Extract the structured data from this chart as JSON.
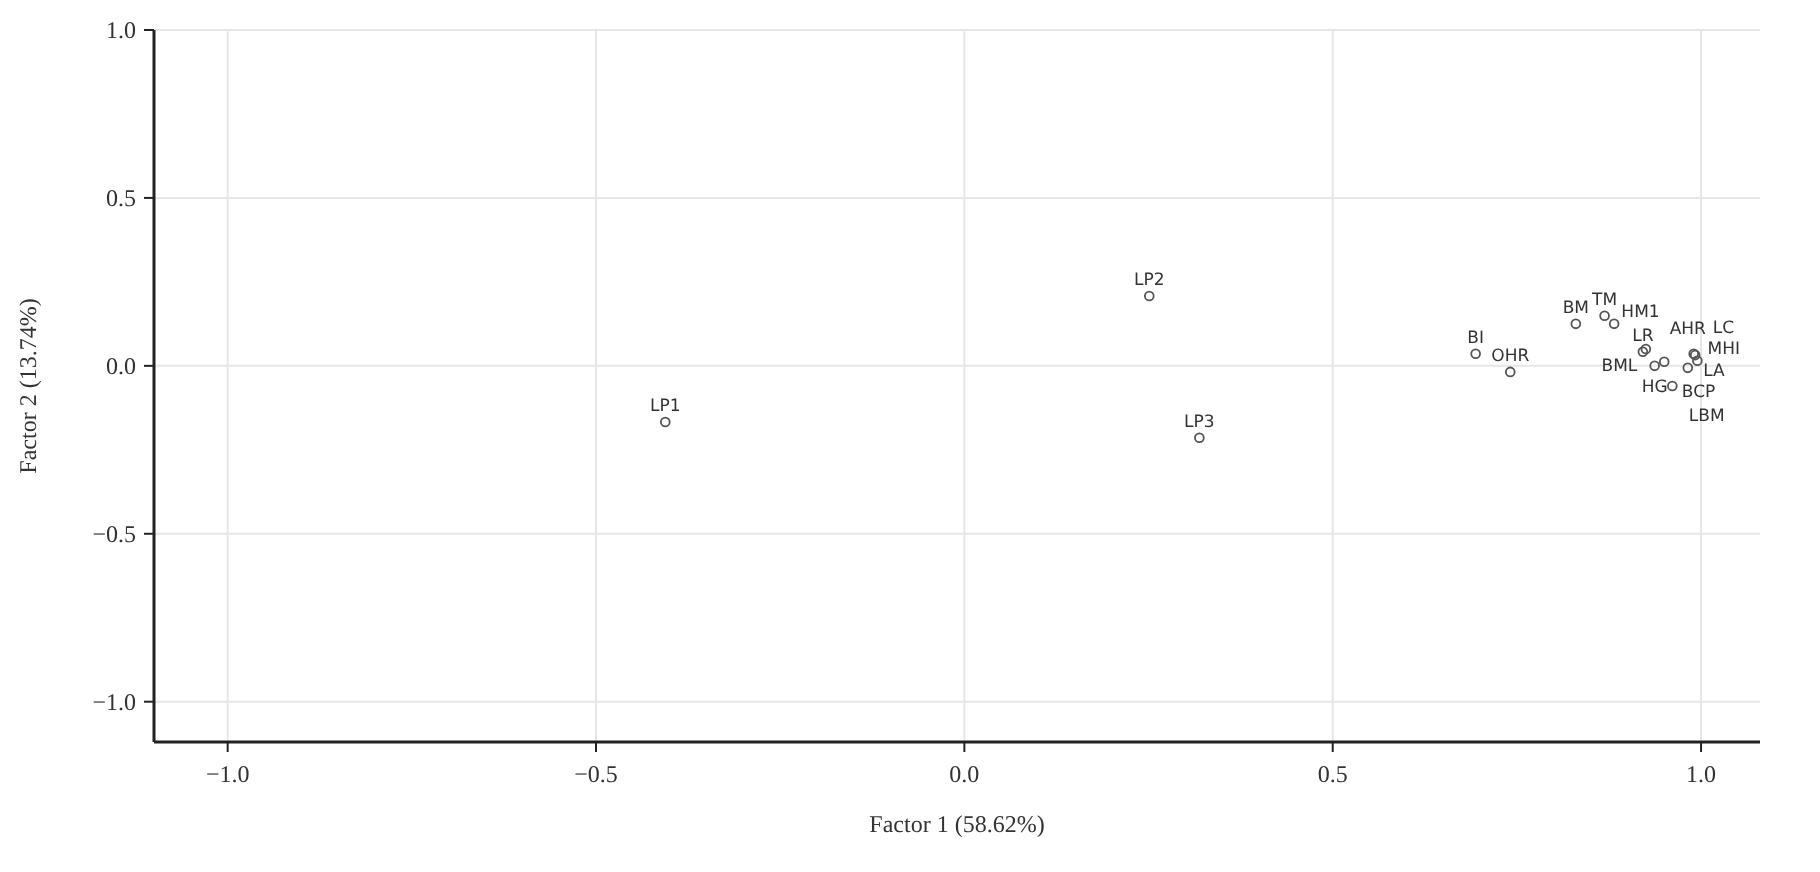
{
  "chart_data": {
    "type": "scatter",
    "xlabel": "Factor 1 (58.62%)",
    "ylabel": "Factor 2 (13.74%)",
    "xlim": [
      -1.1,
      1.08
    ],
    "ylim": [
      -1.12,
      1.0
    ],
    "xticks": [
      {
        "value": -1,
        "label": "−1.0"
      },
      {
        "value": -0.5,
        "label": "−0.5"
      },
      {
        "value": 0,
        "label": "0.0"
      },
      {
        "value": 0.5,
        "label": "0.5"
      },
      {
        "value": 1,
        "label": "1.0"
      }
    ],
    "yticks": [
      {
        "value": -1,
        "label": "−1.0"
      },
      {
        "value": -0.5,
        "label": "−0.5"
      },
      {
        "value": 0,
        "label": "0.0"
      },
      {
        "value": 0.5,
        "label": "0.5"
      },
      {
        "value": 1,
        "label": "1.0"
      }
    ],
    "grid": true,
    "marker": "circle",
    "series": [
      {
        "color": "#555555",
        "x": [
          -0.406,
          0.251,
          0.319,
          0.694,
          0.741,
          0.83,
          0.869,
          0.882,
          0.921,
          0.925,
          0.937,
          0.95,
          0.961,
          0.982,
          0.99,
          0.992,
          0.995
        ],
        "values": [
          -0.167,
          0.208,
          -0.214,
          0.036,
          -0.018,
          0.125,
          0.149,
          0.125,
          0.042,
          0.05,
          0.0,
          0.012,
          -0.06,
          -0.006,
          0.036,
          0.032,
          0.015
        ]
      }
    ],
    "annotations": [
      {
        "text": "LP1",
        "x": -0.406,
        "y": -0.167
      },
      {
        "text": "LP2",
        "x": 0.251,
        "y": 0.208
      },
      {
        "text": "LP3",
        "x": 0.319,
        "y": -0.214
      },
      {
        "text": "BI",
        "x": 0.694,
        "y": 0.036
      },
      {
        "text": "OHR",
        "x": 0.741,
        "y": -0.018
      },
      {
        "text": "BM",
        "x": 0.83,
        "y": 0.125
      },
      {
        "text": "TM",
        "x": 0.869,
        "y": 0.149
      },
      {
        "text": "HM1",
        "x": 0.882,
        "y": 0.125
      },
      {
        "text": "MHI",
        "x": 0.995,
        "y": 0.015
      },
      {
        "text": "LR",
        "x": 0.921,
        "y": 0.042
      },
      {
        "text": "BML",
        "x": 0.925,
        "y": 0.05
      },
      {
        "text": "HG",
        "x": 0.937,
        "y": 0.0
      },
      {
        "text": "BCP",
        "x": 0.95,
        "y": 0.012
      },
      {
        "text": "LBM",
        "x": 0.961,
        "y": -0.06
      },
      {
        "text": "AHR",
        "x": 0.982,
        "y": -0.006
      },
      {
        "text": "LA",
        "x": 0.99,
        "y": 0.036
      },
      {
        "text": "LC",
        "x": 0.992,
        "y": 0.032
      }
    ]
  }
}
